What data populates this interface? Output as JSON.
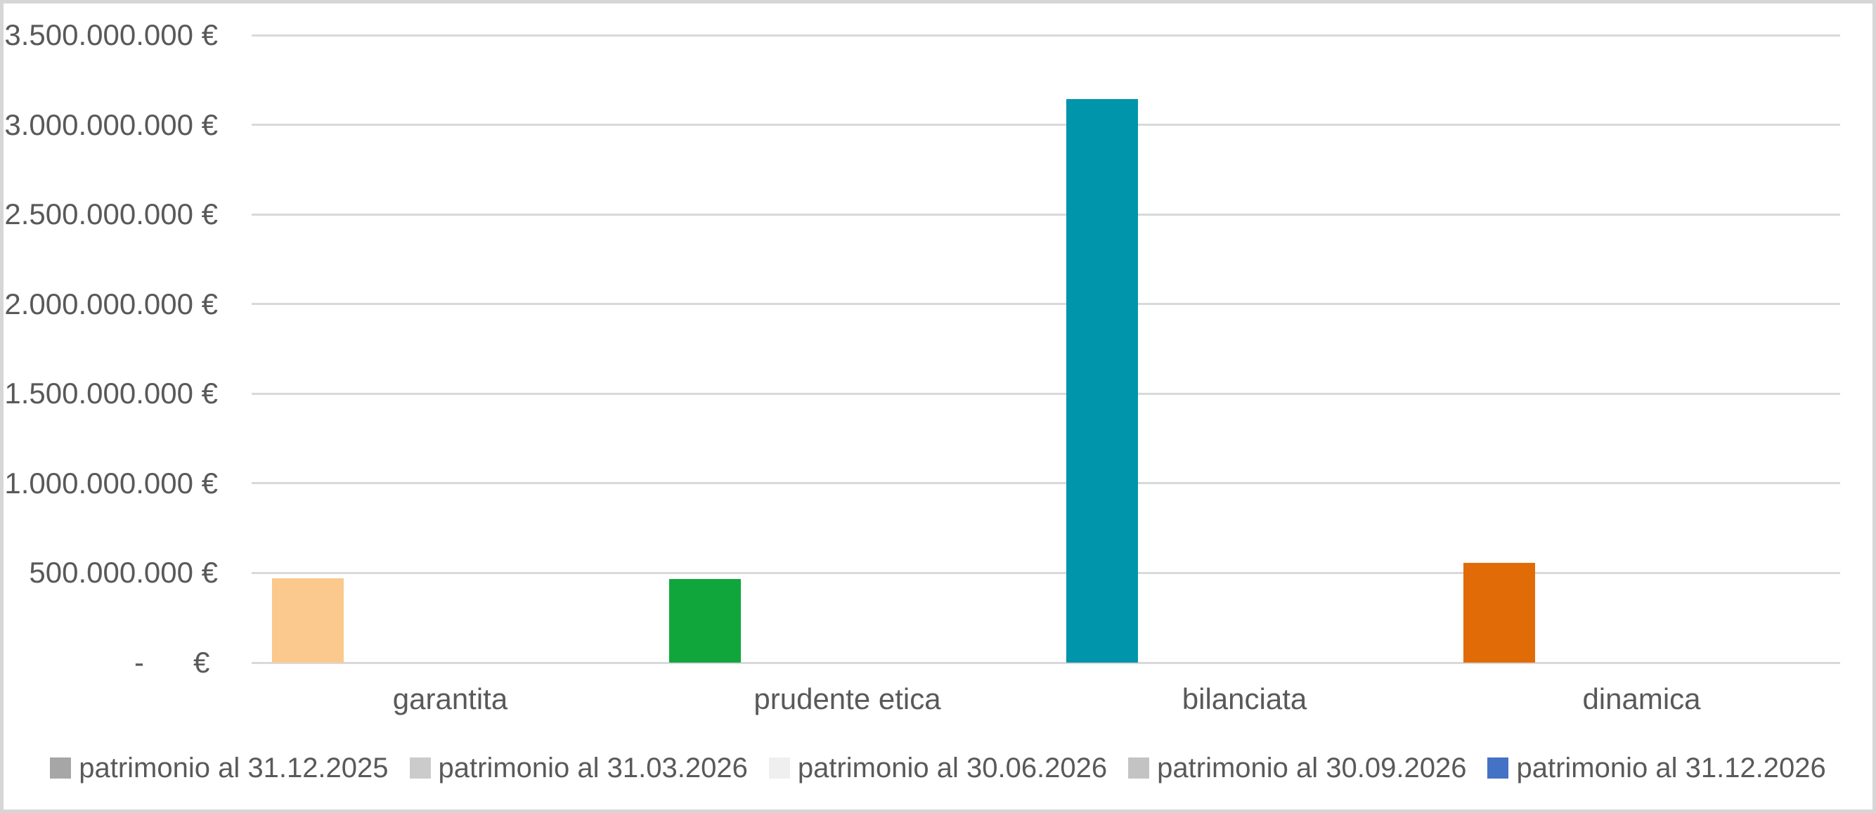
{
  "chart_data": {
    "type": "bar",
    "title": "",
    "xlabel": "",
    "ylabel": "",
    "categories": [
      "garantita",
      "prudente etica",
      "bilanciata",
      "dinamica"
    ],
    "bars": [
      {
        "category": "garantita",
        "value": 470000000,
        "color": "#FBC88D"
      },
      {
        "category": "prudente etica",
        "value": 465000000,
        "color": "#11A63C"
      },
      {
        "category": "bilanciata",
        "value": 3145000000,
        "color": "#0095AB"
      },
      {
        "category": "dinamica",
        "value": 555000000,
        "color": "#E16C07"
      }
    ],
    "y_axis": {
      "min": 0,
      "max": 3500000000,
      "tick_interval": 500000000,
      "tick_labels_top_to_bottom": [
        "3.500.000.000 €",
        "3.000.000.000 €",
        "2.500.000.000 €",
        "2.000.000.000 €",
        "1.500.000.000 €",
        "1.000.000.000 €",
        "500.000.000 €",
        "-      € "
      ]
    },
    "grid": true,
    "legend_position": "bottom",
    "legend": [
      {
        "label": "patrimonio al 31.12.2025",
        "color": "#A6A6A6"
      },
      {
        "label": "patrimonio al 31.03.2026",
        "color": "#CBCBCB"
      },
      {
        "label": "patrimonio al 30.06.2026",
        "color": "#EFEFEF"
      },
      {
        "label": "patrimonio al 30.09.2026",
        "color": "#C3C3C3"
      },
      {
        "label": "patrimonio al 31.12.2026",
        "color": "#4472C4"
      }
    ]
  },
  "theme": {
    "background": "#FFFFFF",
    "border_color": "#D6D6D6",
    "gridline_color": "#D9D9D9",
    "text_color": "#595959"
  }
}
